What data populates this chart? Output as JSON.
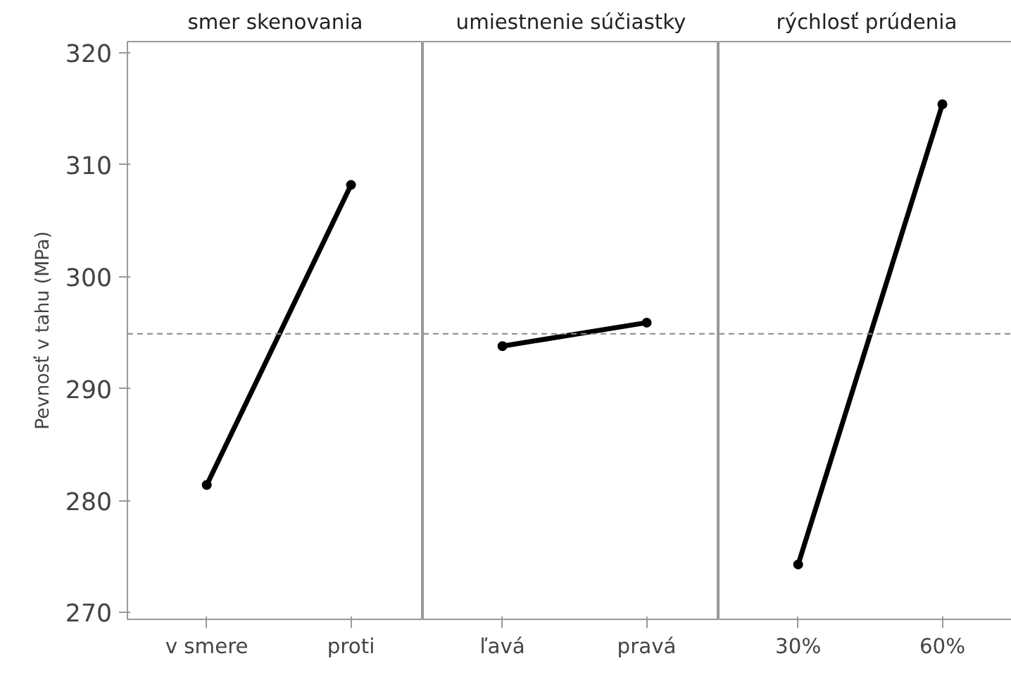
{
  "chart_data": [
    {
      "type": "line",
      "title": "smer skenovania",
      "ylabel": "Pevnosť v tahu (MPa)",
      "categories": [
        "v smere",
        "proti"
      ],
      "series": [
        {
          "color": "#000000",
          "values": [
            281.4,
            308.2
          ]
        }
      ],
      "ylim": [
        269.4,
        321
      ],
      "yticks": [
        270,
        280,
        290,
        300,
        310,
        320
      ],
      "ref_lines": [
        {
          "axis": "y",
          "value": 294.9,
          "color": "#888888",
          "line_style": "dashed"
        }
      ],
      "marker": "circle",
      "line_style": "solid",
      "grid": false
    },
    {
      "type": "line",
      "title": "umiestnenie súčiastky",
      "categories": [
        "ľavá",
        "pravá"
      ],
      "series": [
        {
          "color": "#000000",
          "values": [
            293.8,
            295.9
          ]
        }
      ],
      "ylim": [
        269.4,
        321
      ],
      "yticks": [
        270,
        280,
        290,
        300,
        310,
        320
      ],
      "tick_labels": "x",
      "ref_lines": [
        {
          "axis": "y",
          "value": 294.9,
          "color": "#888888",
          "line_style": "dashed"
        }
      ],
      "marker": "circle",
      "line_style": "solid",
      "grid": false
    },
    {
      "type": "line",
      "title": "rýchlosť prúdenia",
      "categories": [
        "30%",
        "60%"
      ],
      "series": [
        {
          "color": "#000000",
          "values": [
            274.3,
            315.4
          ]
        }
      ],
      "ylim": [
        269.4,
        321
      ],
      "yticks": [
        270,
        280,
        290,
        300,
        310,
        320
      ],
      "tick_labels": "x",
      "ref_lines": [
        {
          "axis": "y",
          "value": 294.9,
          "color": "#888888",
          "line_style": "dashed"
        }
      ],
      "marker": "circle",
      "line_style": "solid",
      "grid": false
    }
  ]
}
